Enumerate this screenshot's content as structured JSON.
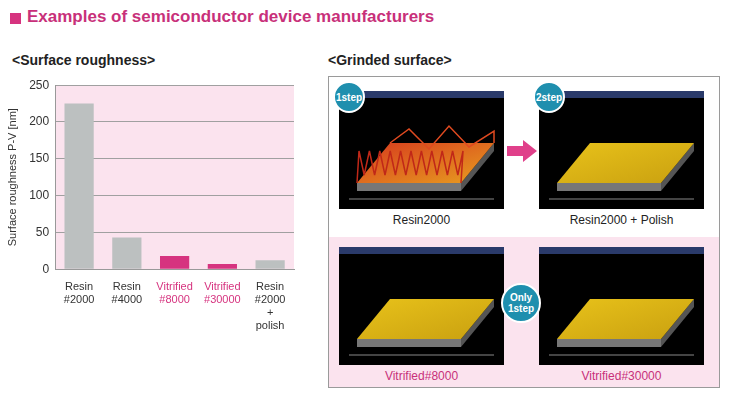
{
  "header": {
    "title": "Examples of semiconductor device manufacturers"
  },
  "chart_data": {
    "type": "bar",
    "title": "<Surface roughness>",
    "y_label": "Surface roughness P-V [nm]",
    "categories": [
      "Resin #2000",
      "Resin #4000",
      "Vitrified #8000",
      "Vitrified #30000",
      "Resin #2000 + polish"
    ],
    "values": [
      225,
      43,
      18,
      7,
      12
    ],
    "colors": [
      "#bcc0c0",
      "#bcc0c0",
      "#d6337f",
      "#d6337f",
      "#bcc0c0"
    ],
    "ylim": [
      0,
      250
    ],
    "yticks": [
      0,
      50,
      100,
      150,
      200,
      250
    ],
    "grid": true
  },
  "panel": {
    "title": "<Grinded surface>",
    "images": [
      {
        "label": "Resin2000",
        "step": "1step"
      },
      {
        "label": "Resin2000 + Polish",
        "step": "2step"
      },
      {
        "label": "Vitrified#8000"
      },
      {
        "label": "Vitrified#30000"
      }
    ],
    "badge": "Only 1step"
  }
}
